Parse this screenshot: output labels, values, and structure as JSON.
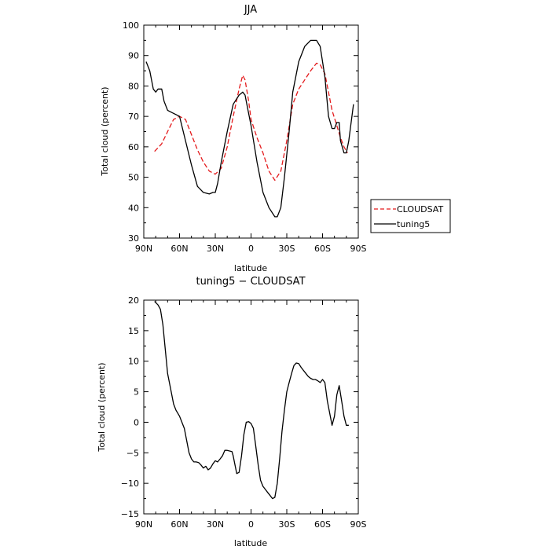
{
  "chart_data": [
    {
      "type": "line",
      "title": "JJA",
      "xlabel": "latitude",
      "ylabel": "Total cloud (percent)",
      "xlim": [
        90,
        -90
      ],
      "ylim": [
        30,
        100
      ],
      "x_ticks": [
        {
          "value": 90,
          "label": "90N"
        },
        {
          "value": 60,
          "label": "60N"
        },
        {
          "value": 30,
          "label": "30N"
        },
        {
          "value": 0,
          "label": "0"
        },
        {
          "value": -30,
          "label": "30S"
        },
        {
          "value": -60,
          "label": "60S"
        },
        {
          "value": -90,
          "label": "90S"
        }
      ],
      "y_ticks": [
        30,
        40,
        50,
        60,
        70,
        80,
        90,
        100
      ],
      "legend": {
        "placement": "right, outside"
      },
      "series": [
        {
          "name": "CLOUDSAT",
          "color": "#e41a1c",
          "dash": "dashed",
          "x": [
            81,
            75,
            70,
            65,
            60,
            55,
            50,
            45,
            40,
            35,
            30,
            25,
            20,
            15,
            10,
            7,
            5,
            2,
            0,
            -5,
            -10,
            -15,
            -20,
            -25,
            -30,
            -35,
            -40,
            -45,
            -50,
            -55,
            -58,
            -62,
            -65,
            -68,
            -72,
            -75,
            -78,
            -81
          ],
          "values": [
            58.5,
            61,
            65,
            69,
            70,
            69,
            64,
            59,
            55,
            52,
            51,
            53,
            60,
            70,
            79,
            83.5,
            82,
            75,
            69,
            63,
            58,
            52,
            49,
            52,
            62,
            74,
            79,
            82,
            85,
            87.5,
            87,
            84,
            78,
            72,
            67,
            63,
            60,
            58
          ]
        },
        {
          "name": "tuning5",
          "color": "#000000",
          "dash": "solid",
          "x": [
            88,
            85,
            82,
            80,
            78,
            75,
            73,
            70,
            65,
            60,
            55,
            50,
            45,
            40,
            35,
            32,
            30,
            28,
            25,
            20,
            15,
            10,
            7,
            5,
            3,
            0,
            -5,
            -10,
            -15,
            -20,
            -22,
            -25,
            -28,
            -32,
            -35,
            -40,
            -45,
            -50,
            -55,
            -58,
            -62,
            -65,
            -68,
            -70,
            -72,
            -74,
            -75,
            -78,
            -80,
            -82,
            -86
          ],
          "values": [
            88,
            85,
            79,
            78,
            79,
            79,
            75,
            72,
            71,
            70,
            62,
            54,
            47,
            45,
            44.5,
            45,
            45,
            48,
            55,
            65,
            74,
            77,
            78,
            77,
            73,
            67,
            55,
            45,
            40,
            37,
            37,
            40,
            50,
            65,
            78,
            88,
            93,
            95,
            95,
            93,
            83,
            70,
            66,
            66,
            68,
            68,
            62,
            58,
            58,
            62,
            74
          ]
        }
      ]
    },
    {
      "type": "line",
      "title": "tuning5 − CLOUDSAT",
      "xlabel": "latitude",
      "ylabel": "Total cloud (percent)",
      "xlim": [
        90,
        -90
      ],
      "ylim": [
        -15,
        20
      ],
      "x_ticks": [
        {
          "value": 90,
          "label": "90N"
        },
        {
          "value": 60,
          "label": "60N"
        },
        {
          "value": 30,
          "label": "30N"
        },
        {
          "value": 0,
          "label": "0"
        },
        {
          "value": -30,
          "label": "30S"
        },
        {
          "value": -60,
          "label": "60S"
        },
        {
          "value": -90,
          "label": "90S"
        }
      ],
      "y_ticks": [
        {
          "value": 20,
          "label": "20"
        },
        {
          "value": 15,
          "label": "15"
        },
        {
          "value": 10,
          "label": "10"
        },
        {
          "value": 5,
          "label": "5"
        },
        {
          "value": 0,
          "label": "0"
        },
        {
          "value": -5,
          "label": "−5"
        },
        {
          "value": -10,
          "label": "−10"
        },
        {
          "value": -15,
          "label": "−15"
        }
      ],
      "series": [
        {
          "name": "",
          "color": "#000000",
          "dash": "solid",
          "x": [
            81,
            78,
            76,
            74,
            72,
            70,
            67,
            65,
            63,
            60,
            58,
            56,
            54,
            52,
            50,
            48,
            46,
            44,
            42,
            40,
            38,
            36,
            34,
            32,
            30,
            28,
            26,
            24,
            22,
            20,
            18,
            16,
            15,
            14,
            12,
            10,
            8,
            6,
            4,
            2,
            0,
            -2,
            -4,
            -6,
            -8,
            -10,
            -12,
            -14,
            -16,
            -18,
            -20,
            -22,
            -24,
            -26,
            -28,
            -30,
            -32,
            -34,
            -36,
            -38,
            -40,
            -42,
            -44,
            -46,
            -48,
            -50,
            -52,
            -54,
            -56,
            -58,
            -60,
            -62,
            -64,
            -66,
            -68,
            -70,
            -72,
            -74,
            -76,
            -78,
            -80,
            -82
          ],
          "values": [
            19.8,
            19.2,
            18.5,
            16,
            12,
            8,
            5,
            3,
            2,
            1,
            0,
            -1,
            -3,
            -5,
            -6,
            -6.5,
            -6.5,
            -6.6,
            -7,
            -7.5,
            -7.2,
            -7.8,
            -7.5,
            -6.8,
            -6.3,
            -6.5,
            -6.0,
            -5.5,
            -4.6,
            -4.6,
            -4.7,
            -4.8,
            -5.5,
            -6.5,
            -8.4,
            -8.2,
            -5.5,
            -2,
            0,
            0.1,
            -0.2,
            -1,
            -4,
            -7,
            -9.5,
            -10.5,
            -11,
            -11.5,
            -12,
            -12.5,
            -12.3,
            -10,
            -6,
            -1.5,
            2,
            5,
            6.5,
            8,
            9.3,
            9.7,
            9.6,
            9.0,
            8.5,
            8.0,
            7.5,
            7.2,
            7.0,
            7.0,
            6.8,
            6.5,
            7.0,
            6.5,
            3.5,
            1.5,
            -0.5,
            1,
            4.5,
            6,
            3.5,
            1,
            -0.5,
            -0.5
          ]
        }
      ]
    }
  ]
}
